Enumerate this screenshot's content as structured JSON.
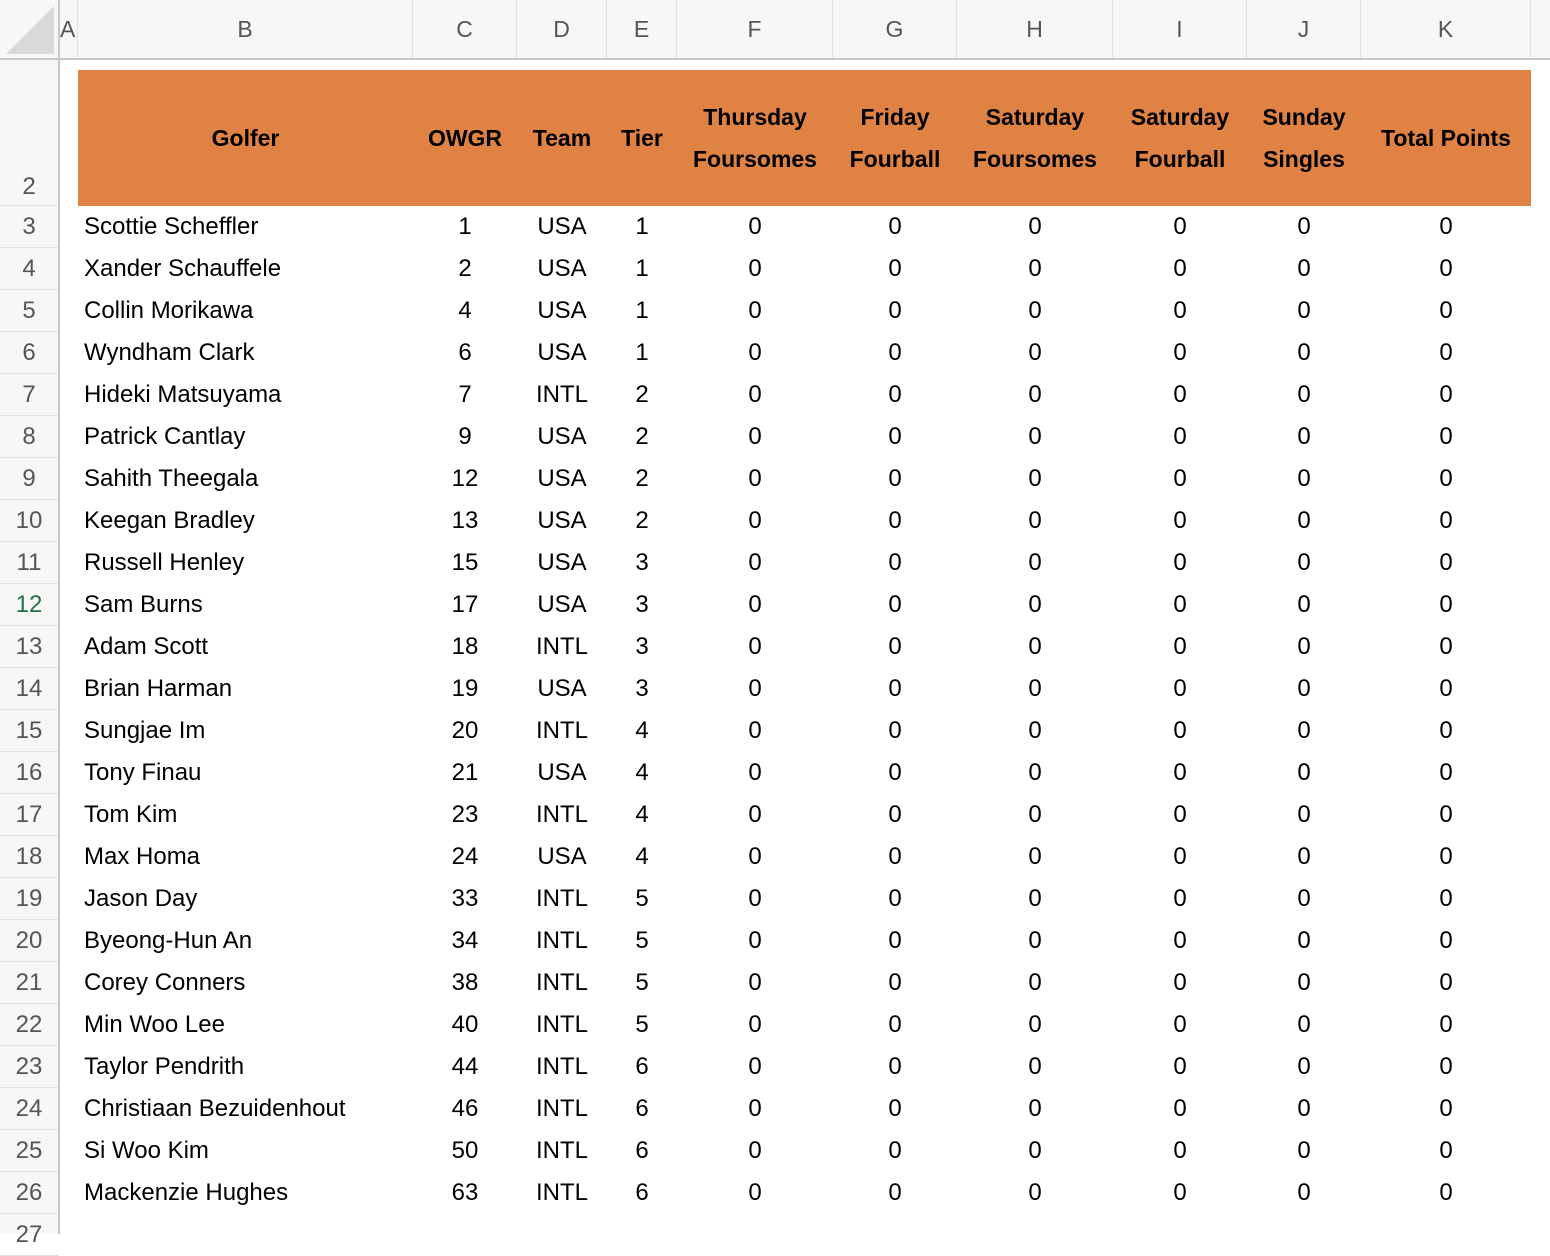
{
  "columns": [
    "A",
    "B",
    "C",
    "D",
    "E",
    "F",
    "G",
    "H",
    "I",
    "J",
    "K"
  ],
  "row_numbers": [
    "2",
    "3",
    "4",
    "5",
    "6",
    "7",
    "8",
    "9",
    "10",
    "11",
    "12",
    "13",
    "14",
    "15",
    "16",
    "17",
    "18",
    "19",
    "20",
    "21",
    "22",
    "23",
    "24",
    "25",
    "26",
    "27"
  ],
  "selected_row": "12",
  "header_color": "#df8244",
  "headers": {
    "golfer": "Golfer",
    "owgr": "OWGR",
    "team": "Team",
    "tier": "Tier",
    "thursday": [
      "Thursday",
      "Foursomes"
    ],
    "friday": [
      "Friday",
      "Fourball"
    ],
    "sat_foursomes": [
      "Saturday",
      "Foursomes"
    ],
    "sat_fourball": [
      "Saturday",
      "Fourball"
    ],
    "sunday": [
      "Sunday",
      "Singles"
    ],
    "total": "Total Points"
  },
  "rows": [
    [
      "Scottie Scheffler",
      "1",
      "USA",
      "1",
      "0",
      "0",
      "0",
      "0",
      "0",
      "0"
    ],
    [
      "Xander Schauffele",
      "2",
      "USA",
      "1",
      "0",
      "0",
      "0",
      "0",
      "0",
      "0"
    ],
    [
      "Collin Morikawa",
      "4",
      "USA",
      "1",
      "0",
      "0",
      "0",
      "0",
      "0",
      "0"
    ],
    [
      "Wyndham Clark",
      "6",
      "USA",
      "1",
      "0",
      "0",
      "0",
      "0",
      "0",
      "0"
    ],
    [
      "Hideki Matsuyama",
      "7",
      "INTL",
      "2",
      "0",
      "0",
      "0",
      "0",
      "0",
      "0"
    ],
    [
      "Patrick Cantlay",
      "9",
      "USA",
      "2",
      "0",
      "0",
      "0",
      "0",
      "0",
      "0"
    ],
    [
      "Sahith Theegala",
      "12",
      "USA",
      "2",
      "0",
      "0",
      "0",
      "0",
      "0",
      "0"
    ],
    [
      "Keegan Bradley",
      "13",
      "USA",
      "2",
      "0",
      "0",
      "0",
      "0",
      "0",
      "0"
    ],
    [
      "Russell Henley",
      "15",
      "USA",
      "3",
      "0",
      "0",
      "0",
      "0",
      "0",
      "0"
    ],
    [
      "Sam Burns",
      "17",
      "USA",
      "3",
      "0",
      "0",
      "0",
      "0",
      "0",
      "0"
    ],
    [
      "Adam Scott",
      "18",
      "INTL",
      "3",
      "0",
      "0",
      "0",
      "0",
      "0",
      "0"
    ],
    [
      "Brian Harman",
      "19",
      "USA",
      "3",
      "0",
      "0",
      "0",
      "0",
      "0",
      "0"
    ],
    [
      "Sungjae Im",
      "20",
      "INTL",
      "4",
      "0",
      "0",
      "0",
      "0",
      "0",
      "0"
    ],
    [
      "Tony Finau",
      "21",
      "USA",
      "4",
      "0",
      "0",
      "0",
      "0",
      "0",
      "0"
    ],
    [
      "Tom Kim",
      "23",
      "INTL",
      "4",
      "0",
      "0",
      "0",
      "0",
      "0",
      "0"
    ],
    [
      "Max Homa",
      "24",
      "USA",
      "4",
      "0",
      "0",
      "0",
      "0",
      "0",
      "0"
    ],
    [
      "Jason Day",
      "33",
      "INTL",
      "5",
      "0",
      "0",
      "0",
      "0",
      "0",
      "0"
    ],
    [
      "Byeong-Hun An",
      "34",
      "INTL",
      "5",
      "0",
      "0",
      "0",
      "0",
      "0",
      "0"
    ],
    [
      "Corey Conners",
      "38",
      "INTL",
      "5",
      "0",
      "0",
      "0",
      "0",
      "0",
      "0"
    ],
    [
      "Min Woo Lee",
      "40",
      "INTL",
      "5",
      "0",
      "0",
      "0",
      "0",
      "0",
      "0"
    ],
    [
      "Taylor Pendrith",
      "44",
      "INTL",
      "6",
      "0",
      "0",
      "0",
      "0",
      "0",
      "0"
    ],
    [
      "Christiaan Bezuidenhout",
      "46",
      "INTL",
      "6",
      "0",
      "0",
      "0",
      "0",
      "0",
      "0"
    ],
    [
      "Si Woo Kim",
      "50",
      "INTL",
      "6",
      "0",
      "0",
      "0",
      "0",
      "0",
      "0"
    ],
    [
      "Mackenzie Hughes",
      "63",
      "INTL",
      "6",
      "0",
      "0",
      "0",
      "0",
      "0",
      "0"
    ]
  ]
}
